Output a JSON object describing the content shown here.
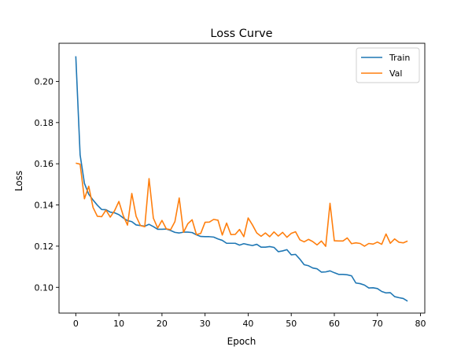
{
  "chart_data": {
    "type": "line",
    "title": "Loss Curve",
    "xlabel": "Epoch",
    "ylabel": "Loss",
    "xlim": [
      -3.9,
      81.0
    ],
    "ylim": [
      0.0875,
      0.2185
    ],
    "xticks": [
      0,
      10,
      20,
      30,
      40,
      50,
      60,
      70,
      80
    ],
    "yticks": [
      0.1,
      0.12,
      0.14,
      0.16,
      0.18,
      0.2
    ],
    "ytick_labels": [
      "0.10",
      "0.12",
      "0.14",
      "0.16",
      "0.18",
      "0.20"
    ],
    "grid": false,
    "legend_position": "top-right",
    "series": [
      {
        "name": "Train",
        "color": "#1f77b4",
        "values": [
          0.2122,
          0.1643,
          0.1505,
          0.1452,
          0.1424,
          0.1399,
          0.1378,
          0.1377,
          0.1365,
          0.1362,
          0.1353,
          0.1337,
          0.1324,
          0.1319,
          0.1303,
          0.13,
          0.1297,
          0.1306,
          0.1295,
          0.1282,
          0.1282,
          0.1283,
          0.1276,
          0.1267,
          0.1264,
          0.1268,
          0.1268,
          0.1266,
          0.1255,
          0.1247,
          0.1246,
          0.1246,
          0.1244,
          0.1235,
          0.1228,
          0.1214,
          0.1214,
          0.1214,
          0.1205,
          0.1212,
          0.1207,
          0.1203,
          0.1209,
          0.1195,
          0.1195,
          0.1198,
          0.1194,
          0.1173,
          0.1177,
          0.1183,
          0.1158,
          0.116,
          0.1137,
          0.111,
          0.1105,
          0.1094,
          0.109,
          0.1074,
          0.1075,
          0.108,
          0.1071,
          0.1063,
          0.1063,
          0.1061,
          0.1056,
          0.1021,
          0.1018,
          0.1011,
          0.0997,
          0.0998,
          0.0994,
          0.098,
          0.0973,
          0.0974,
          0.0955,
          0.095,
          0.0946,
          0.0933
        ]
      },
      {
        "name": "Val",
        "color": "#ff7f0e",
        "values": [
          0.1603,
          0.1598,
          0.143,
          0.1491,
          0.1388,
          0.1345,
          0.1343,
          0.1375,
          0.1341,
          0.1372,
          0.1417,
          0.1349,
          0.1302,
          0.1456,
          0.1345,
          0.13,
          0.1294,
          0.1528,
          0.1336,
          0.1288,
          0.1325,
          0.1284,
          0.128,
          0.1319,
          0.1434,
          0.1267,
          0.1309,
          0.1328,
          0.1256,
          0.1262,
          0.1316,
          0.1317,
          0.133,
          0.1326,
          0.1254,
          0.1312,
          0.1256,
          0.1257,
          0.1281,
          0.1246,
          0.1337,
          0.1303,
          0.1264,
          0.1248,
          0.1264,
          0.1246,
          0.1269,
          0.1249,
          0.1267,
          0.1243,
          0.1262,
          0.127,
          0.1231,
          0.1221,
          0.1233,
          0.1222,
          0.1206,
          0.1225,
          0.1199,
          0.1408,
          0.1226,
          0.1225,
          0.1225,
          0.124,
          0.1212,
          0.1216,
          0.1213,
          0.12,
          0.1213,
          0.121,
          0.122,
          0.1209,
          0.1259,
          0.1214,
          0.1235,
          0.1219,
          0.1216,
          0.1225
        ]
      }
    ]
  }
}
